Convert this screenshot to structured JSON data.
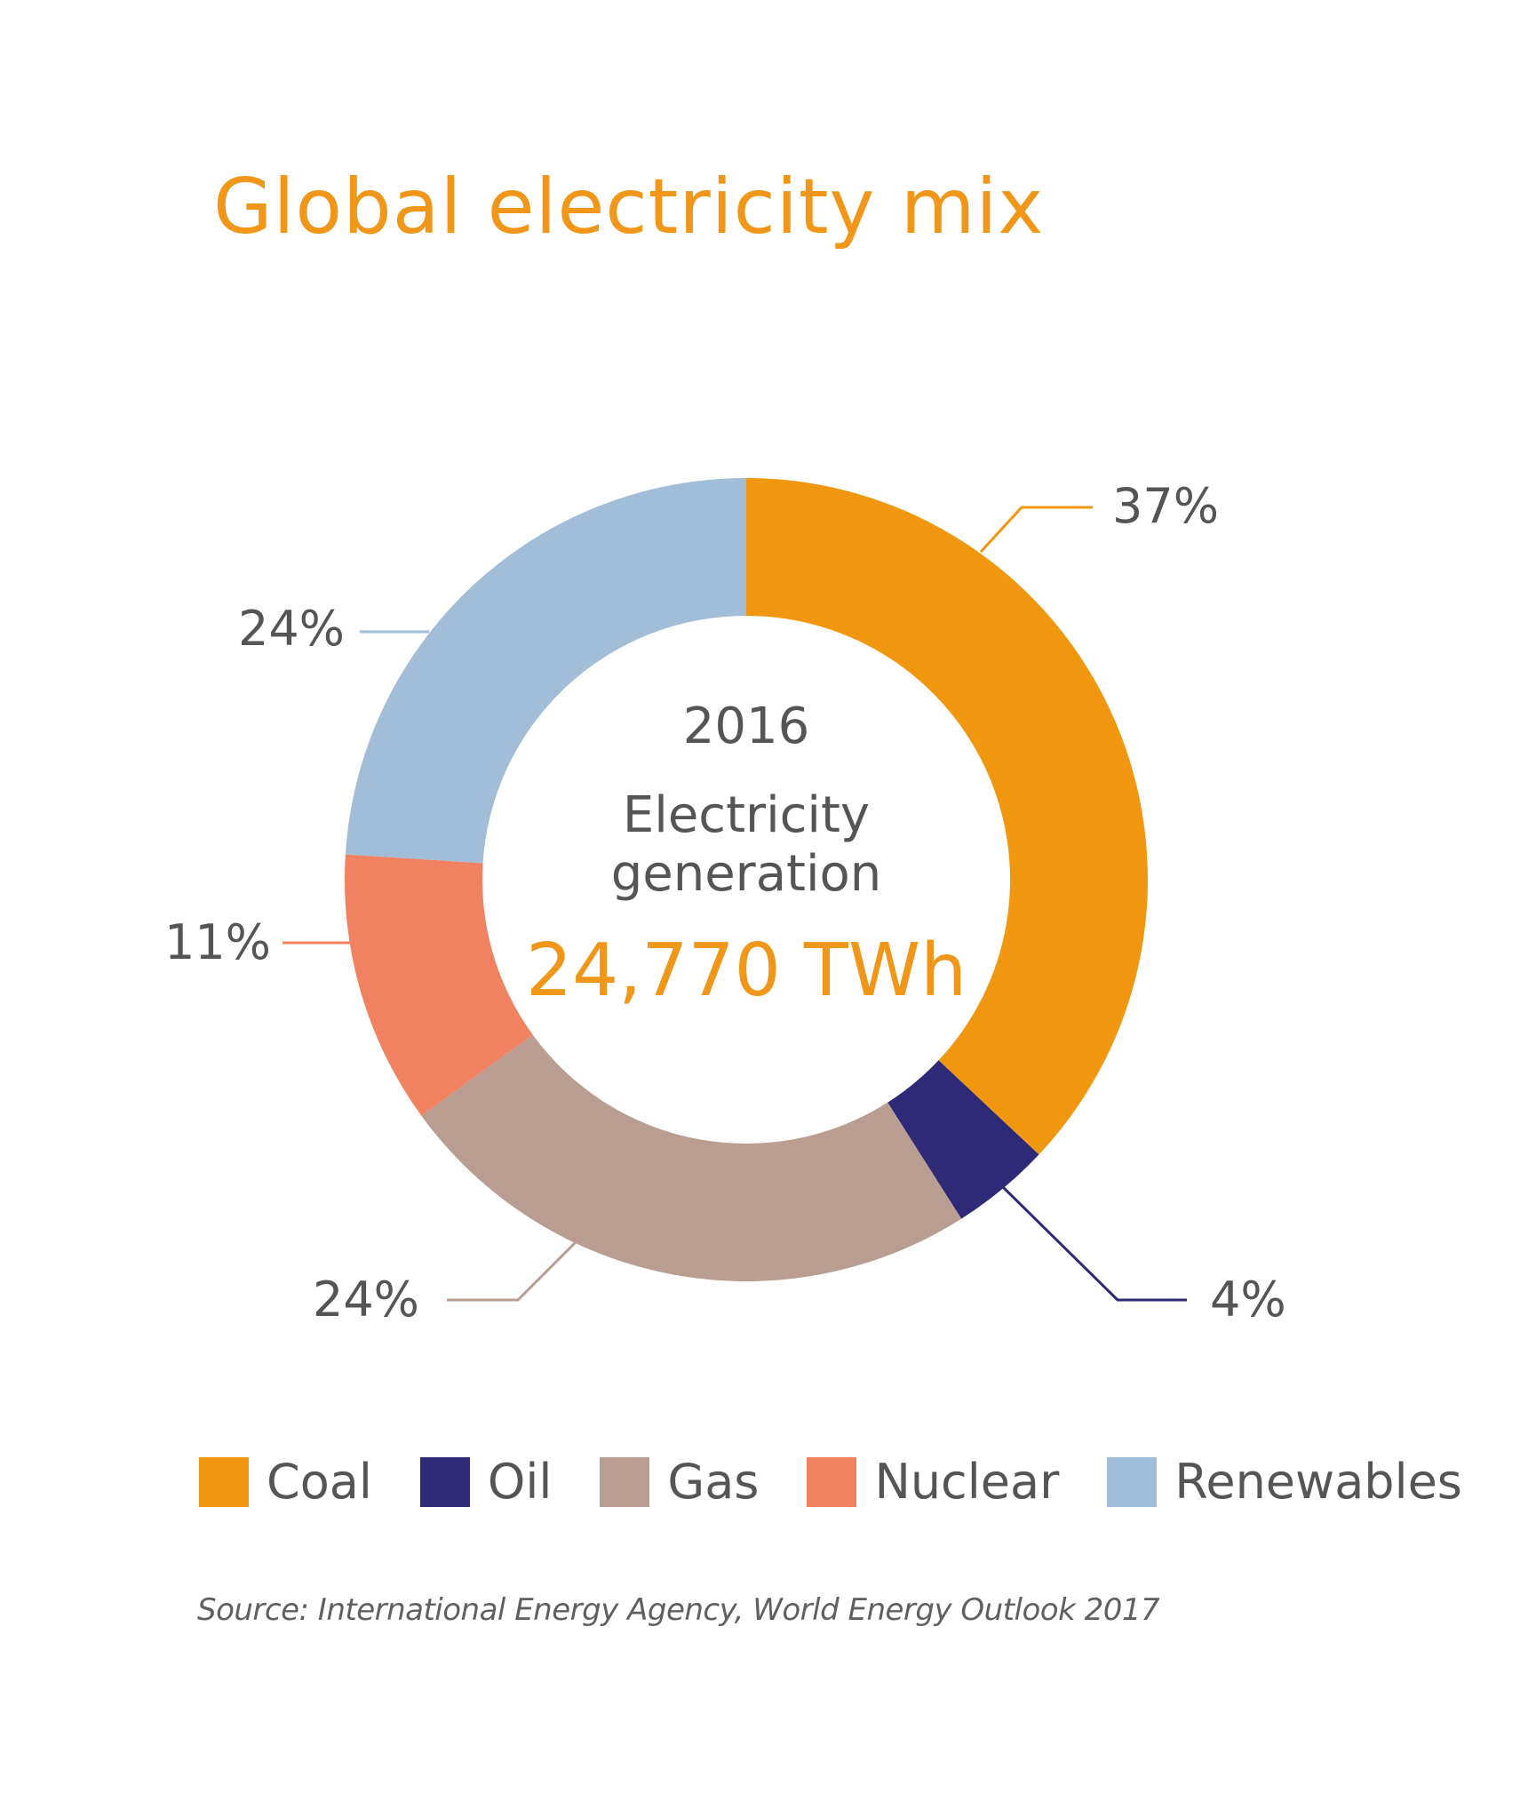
{
  "title": "Global electricity mix",
  "center": {
    "year": "2016",
    "line1": "Electricity",
    "line2": "generation",
    "total": "24,770 TWh"
  },
  "colors": {
    "accent": "#f0971a",
    "text": "#555555",
    "Coal": "#f0970f",
    "Oil": "#2f2a78",
    "Gas": "#b89d90",
    "Nuclear": "#f08262",
    "Renewables": "#a1bdd8"
  },
  "chart_data": {
    "type": "pie",
    "subtype": "donut",
    "categories": [
      "Coal",
      "Oil",
      "Gas",
      "Nuclear",
      "Renewables"
    ],
    "values": [
      37,
      4,
      24,
      11,
      24
    ],
    "unit": "%",
    "data_labels": [
      "37%",
      "4%",
      "24%",
      "11%",
      "24%"
    ],
    "legend_position": "bottom",
    "start": "top, clockwise"
  },
  "legend": [
    {
      "label": "Coal",
      "color": "#f0970f"
    },
    {
      "label": "Oil",
      "color": "#2f2a78"
    },
    {
      "label": "Gas",
      "color": "#b89d90"
    },
    {
      "label": "Nuclear",
      "color": "#f08262"
    },
    {
      "label": "Renewables",
      "color": "#a1bdd8"
    }
  ],
  "source": "Source: International Energy Agency, World Energy Outlook 2017"
}
